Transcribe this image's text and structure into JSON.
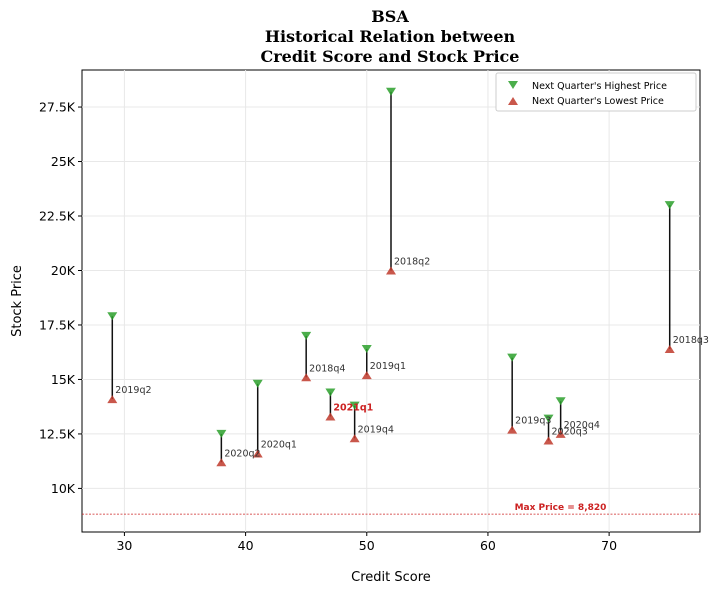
{
  "chart_data": {
    "type": "scatter",
    "title": [
      "BSA",
      "Historical Relation between",
      "Credit Score and Stock Price"
    ],
    "xlabel": "Credit Score",
    "ylabel": "Stock Price",
    "xlim": [
      26.5,
      77.5
    ],
    "ylim": [
      8000,
      29200
    ],
    "xticks": [
      30,
      40,
      50,
      60,
      70
    ],
    "yticks": [
      {
        "value": 10000,
        "label": "10K"
      },
      {
        "value": 12500,
        "label": "12.5K"
      },
      {
        "value": 15000,
        "label": "15K"
      },
      {
        "value": 17500,
        "label": "17.5K"
      },
      {
        "value": 20000,
        "label": "20K"
      },
      {
        "value": 22500,
        "label": "22.5K"
      },
      {
        "value": 25000,
        "label": "25K"
      },
      {
        "value": 27500,
        "label": "27.5K"
      }
    ],
    "grid": true,
    "legend_position": "top-right",
    "series": [
      {
        "name": "Next Quarter's Highest Price",
        "color": "#2ca02c",
        "marker": "triangle-down"
      },
      {
        "name": "Next Quarter's Lowest Price",
        "color": "#c0392b",
        "marker": "triangle-up"
      }
    ],
    "points": [
      {
        "label": "2018q2",
        "credit_score": 52,
        "high": 28200,
        "low": 20000,
        "highlight": false
      },
      {
        "label": "2018q3",
        "credit_score": 75,
        "high": 23000,
        "low": 16400,
        "highlight": false
      },
      {
        "label": "2018q4",
        "credit_score": 45,
        "high": 17000,
        "low": 15100,
        "highlight": false
      },
      {
        "label": "2019q1",
        "credit_score": 50,
        "high": 16400,
        "low": 15200,
        "highlight": false
      },
      {
        "label": "2019q2",
        "credit_score": 29,
        "high": 17900,
        "low": 14100,
        "highlight": false
      },
      {
        "label": "2019q3",
        "credit_score": 62,
        "high": 16000,
        "low": 12700,
        "highlight": false
      },
      {
        "label": "2019q4",
        "credit_score": 49,
        "high": 13800,
        "low": 12300,
        "highlight": false
      },
      {
        "label": "2020q1",
        "credit_score": 41,
        "high": 14800,
        "low": 11600,
        "highlight": false
      },
      {
        "label": "2020q2",
        "credit_score": 38,
        "high": 12500,
        "low": 11200,
        "highlight": false
      },
      {
        "label": "2020q3",
        "credit_score": 65,
        "high": 13200,
        "low": 12200,
        "highlight": false
      },
      {
        "label": "2020q4",
        "credit_score": 66,
        "high": 14000,
        "low": 12500,
        "highlight": false
      },
      {
        "label": "2021q1",
        "credit_score": 47,
        "high": 14400,
        "low": 13300,
        "highlight": true
      }
    ],
    "reference_line": {
      "value": 8820,
      "label": "Max Price = 8,820",
      "color": "#cc2222"
    }
  }
}
